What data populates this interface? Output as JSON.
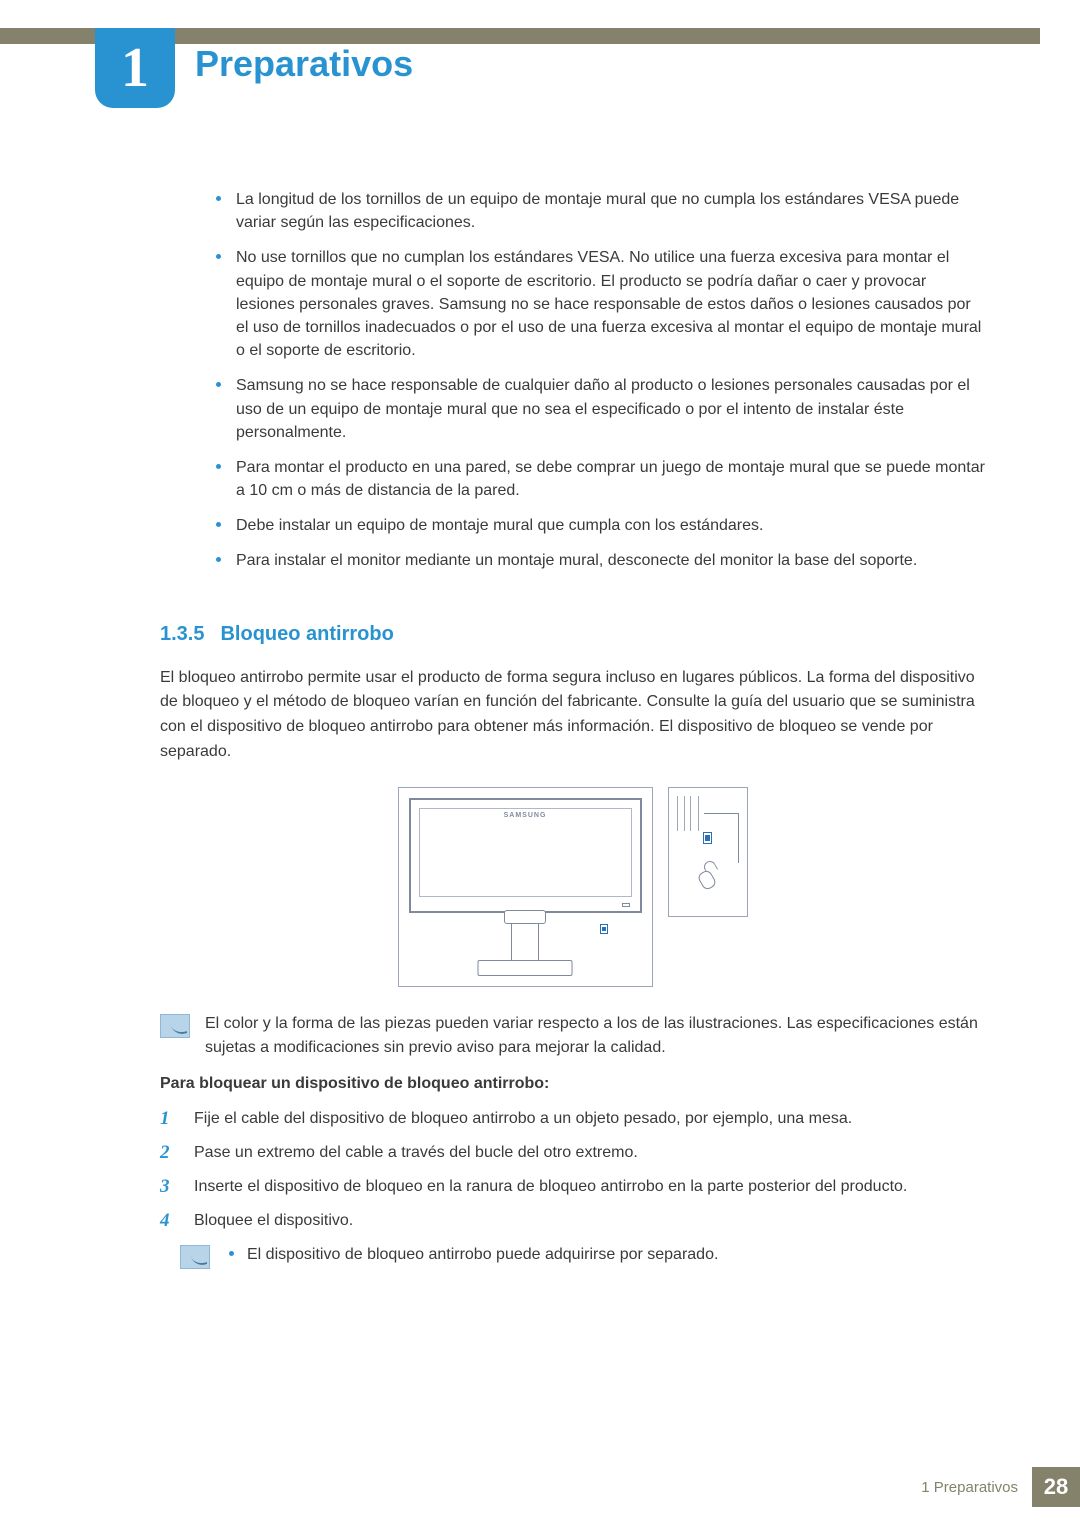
{
  "chapter": {
    "number": "1",
    "title": "Preparativos"
  },
  "bullets": [
    "La longitud de los tornillos de un equipo de montaje mural que no cumpla los estándares VESA puede variar según las especificaciones.",
    "No use tornillos que no cumplan los estándares VESA. No utilice una fuerza excesiva para montar el equipo de montaje mural o el soporte de escritorio. El producto se podría dañar o caer y provocar lesiones personales graves. Samsung no se hace responsable de estos daños o lesiones causados por el uso de tornillos inadecuados o por el uso de una fuerza excesiva al montar el equipo de montaje mural o el soporte de escritorio.",
    "Samsung no se hace responsable de cualquier daño al producto o lesiones personales causadas por el uso de un equipo de montaje mural que no sea el especificado o por el intento de instalar éste personalmente.",
    "Para montar el producto en una pared, se debe comprar un juego de montaje mural que se puede montar a 10 cm o más de distancia de la pared.",
    "Debe instalar un equipo de montaje mural que cumpla con los estándares.",
    "Para instalar el monitor mediante un montaje mural, desconecte del monitor la base del soporte."
  ],
  "section": {
    "number": "1.3.5",
    "title": "Bloqueo antirrobo",
    "intro": "El bloqueo antirrobo permite usar el producto de forma segura incluso en lugares públicos. La forma del dispositivo de bloqueo y el método de bloqueo varían en función del fabricante. Consulte la guía del usuario que se suministra con el dispositivo de bloqueo antirrobo para obtener más información. El dispositivo de bloqueo se vende por separado."
  },
  "diagram": {
    "brand": "SAMSUNG"
  },
  "note1": "El color y la forma de las piezas pueden variar respecto a los de las ilustraciones. Las especificaciones están sujetas a modificaciones sin previo aviso para mejorar la calidad.",
  "subheading": "Para bloquear un dispositivo de bloqueo antirrobo:",
  "steps": [
    "Fije el cable del dispositivo de bloqueo antirrobo a un objeto pesado, por ejemplo, una mesa.",
    "Pase un extremo del cable a través del bucle del otro extremo.",
    "Inserte el dispositivo de bloqueo en la ranura de bloqueo antirrobo en la parte posterior del producto.",
    "Bloquee el dispositivo."
  ],
  "note2": "El dispositivo de bloqueo antirrobo puede adquirirse por separado.",
  "footer": {
    "label": "1 Preparativos",
    "page": "28"
  },
  "colors": {
    "accent": "#2993d1",
    "olive": "#85826b",
    "text": "#3a3a3a",
    "diagram_border": "#9ca6b8",
    "lock_port": "#2970b8",
    "note_bg": "#b8d4e8"
  }
}
